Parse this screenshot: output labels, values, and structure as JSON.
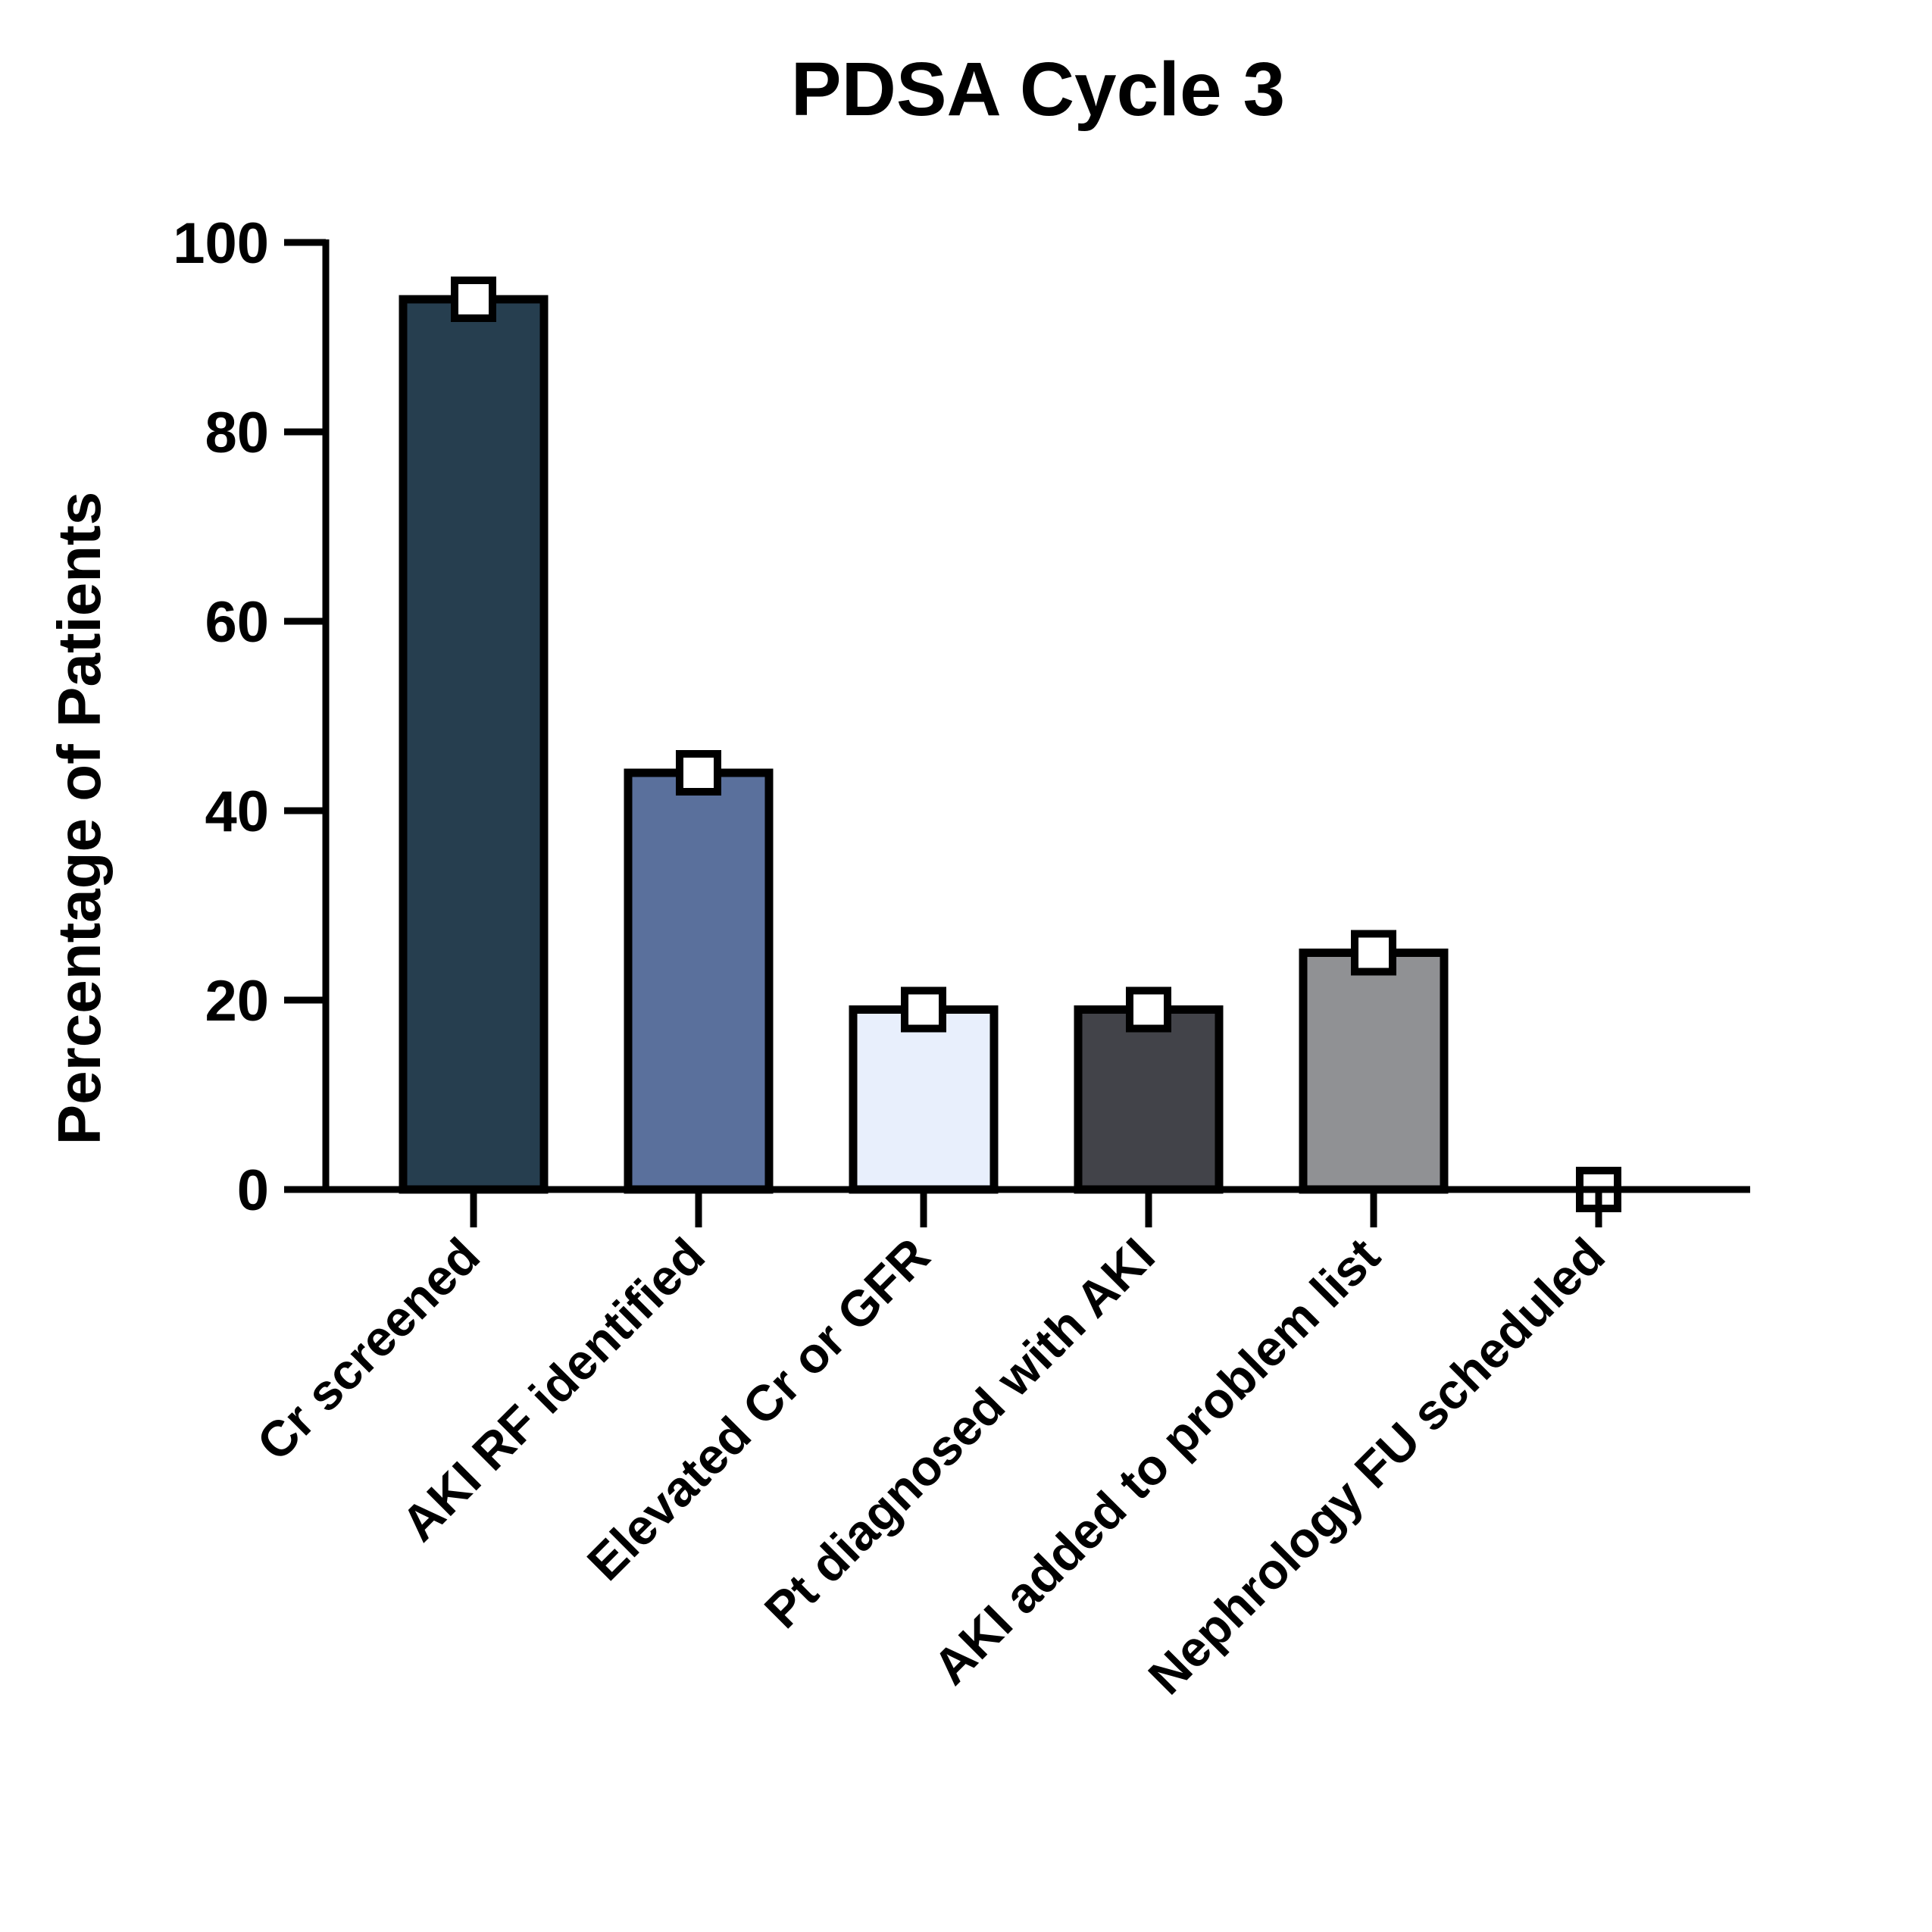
{
  "chart_data": {
    "type": "bar",
    "title": "PDSA Cycle 3",
    "xlabel": "",
    "ylabel": "Percentage of Patients",
    "ylim": [
      0,
      100
    ],
    "yticks": [
      "0",
      "20",
      "40",
      "60",
      "80",
      "100"
    ],
    "categories": [
      "Cr screened",
      "AKI RF identified",
      "Elevated Cr or GFR",
      "Pt diagnosed with AKI",
      "AKI added to problem list",
      "Nephrology FU scheduled"
    ],
    "values": [
      94,
      44,
      19,
      19,
      25,
      0
    ],
    "colors": [
      "#263e4f",
      "#5a709c",
      "#e8effc",
      "#424349",
      "#909194",
      "#ffffff"
    ],
    "marker": "open-square",
    "grid": false,
    "legend": "none"
  }
}
